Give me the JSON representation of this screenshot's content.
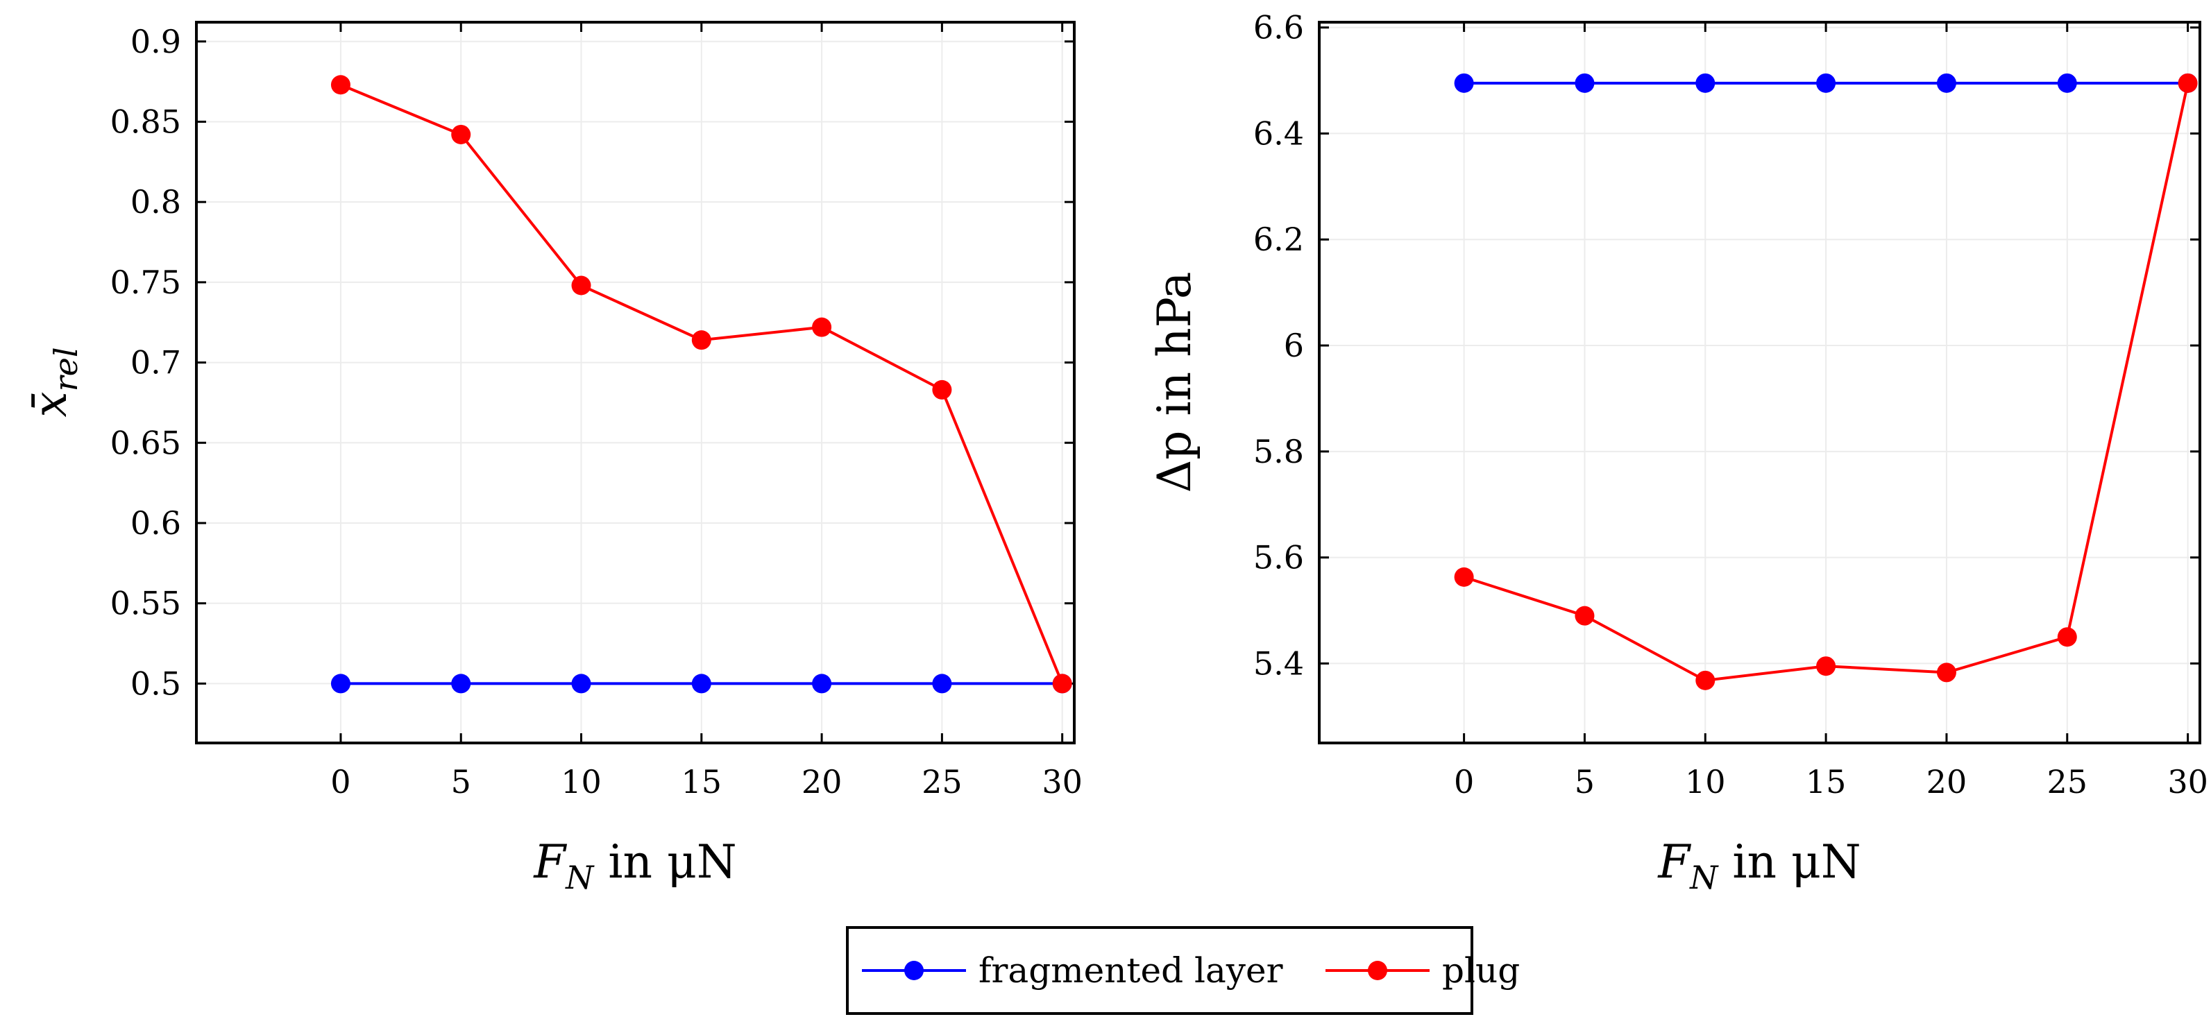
{
  "legend": {
    "entries": [
      {
        "label": "fragmented layer",
        "color": "#0000ff"
      },
      {
        "label": "plug",
        "color": "#ff0000"
      }
    ]
  },
  "chart_data": [
    {
      "type": "line",
      "title": "",
      "xlabel_main": "F",
      "xlabel_sub": "N",
      "xlabel_rest": " in μN",
      "ylabel_main": "x̄",
      "ylabel_sub": "rel",
      "xlim": [
        -6,
        30.5
      ],
      "ylim": [
        0.463,
        0.912
      ],
      "xticks": [
        0,
        5,
        10,
        15,
        20,
        25,
        30
      ],
      "xtick_labels": [
        "0",
        "5",
        "10",
        "15",
        "20",
        "25",
        "30"
      ],
      "yticks": [
        0.5,
        0.55,
        0.6,
        0.65,
        0.7,
        0.75,
        0.8,
        0.85,
        0.9
      ],
      "ytick_labels": [
        "0.5",
        "0.55",
        "0.6",
        "0.65",
        "0.7",
        "0.75",
        "0.8",
        "0.85",
        "0.9"
      ],
      "grid": true,
      "x": [
        0,
        5,
        10,
        15,
        20,
        25,
        30
      ],
      "series": [
        {
          "name": "fragmented layer",
          "values": [
            0.5,
            0.5,
            0.5,
            0.5,
            0.5,
            0.5,
            0.5
          ]
        },
        {
          "name": "plug",
          "values": [
            0.873,
            0.842,
            0.748,
            0.714,
            0.722,
            0.683,
            0.5
          ]
        }
      ]
    },
    {
      "type": "line",
      "title": "",
      "xlabel_main": "F",
      "xlabel_sub": "N",
      "xlabel_rest": " in μN",
      "ylabel_main": "Δp",
      "ylabel_rest": " in hPa",
      "xlim": [
        -6,
        30.5
      ],
      "ylim": [
        5.25,
        6.61
      ],
      "xticks": [
        0,
        5,
        10,
        15,
        20,
        25,
        30
      ],
      "xtick_labels": [
        "0",
        "5",
        "10",
        "15",
        "20",
        "25",
        "30"
      ],
      "yticks": [
        5.4,
        5.6,
        5.8,
        6.0,
        6.2,
        6.4,
        6.6
      ],
      "ytick_labels": [
        "5.4",
        "5.6",
        "5.8",
        "6",
        "6.2",
        "6.4",
        "6.6"
      ],
      "grid": true,
      "x": [
        0,
        5,
        10,
        15,
        20,
        25,
        30
      ],
      "series": [
        {
          "name": "fragmented layer",
          "values": [
            6.495,
            6.495,
            6.495,
            6.495,
            6.495,
            6.495,
            6.495
          ]
        },
        {
          "name": "plug",
          "values": [
            5.563,
            5.49,
            5.368,
            5.395,
            5.383,
            5.45,
            6.495
          ]
        }
      ]
    }
  ]
}
